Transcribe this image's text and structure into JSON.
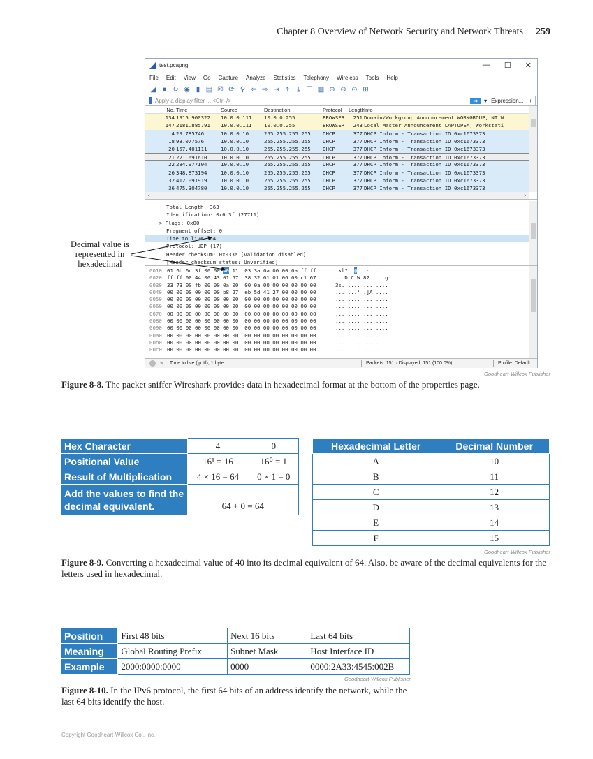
{
  "page": {
    "chapter": "Chapter 8   Overview of Network Security and Network Threats",
    "number": "259",
    "copyright": "Copyright Goodheart-Willcox Co., Inc."
  },
  "wireshark": {
    "title": "test.pcapng",
    "window_buttons": [
      "—",
      "☐",
      "✕"
    ],
    "menu": [
      "File",
      "Edit",
      "View",
      "Go",
      "Capture",
      "Analyze",
      "Statistics",
      "Telephony",
      "Wireless",
      "Tools",
      "Help"
    ],
    "toolbar_icons": [
      "shark-fin-icon",
      "stop-icon",
      "restart-icon",
      "options-icon",
      "open-icon",
      "save-icon",
      "close-file-icon",
      "reload-icon",
      "find-icon",
      "back-icon",
      "forward-icon",
      "go-to-icon",
      "first-icon",
      "last-icon",
      "autoscroll-icon",
      "colorize-icon",
      "zoom-in-icon",
      "zoom-out-icon",
      "zoom-reset-icon",
      "resize-columns-icon"
    ],
    "filter": {
      "placeholder": "Apply a display filter ... <Ctrl-/>",
      "expression": "Expression...",
      "plus": "+"
    },
    "columns": [
      "No.",
      "Time",
      "Source",
      "Destination",
      "Protocol",
      "Length",
      "Info"
    ],
    "packets": [
      {
        "no": "134",
        "time": "1915.900322",
        "src": "10.0.0.111",
        "dst": "10.0.0.255",
        "proto": "BROWSER",
        "len": "251",
        "info": "Domain/Workgroup Announcement WORKGROUP, NT W",
        "color": "yellow"
      },
      {
        "no": "147",
        "time": "2181.885791",
        "src": "10.0.0.111",
        "dst": "10.0.0.255",
        "proto": "BROWSER",
        "len": "243",
        "info": "Local Master Announcement LAPTOPEA, Workstati",
        "color": "yellow"
      },
      {
        "no": "4",
        "time": "29.785746",
        "src": "10.0.0.10",
        "dst": "255.255.255.255",
        "proto": "DHCP",
        "len": "377",
        "info": "DHCP Inform    - Transaction ID 0xc1673373",
        "color": "blue"
      },
      {
        "no": "18",
        "time": "93.077576",
        "src": "10.0.0.10",
        "dst": "255.255.255.255",
        "proto": "DHCP",
        "len": "377",
        "info": "DHCP Inform    - Transaction ID 0xc1673373",
        "color": "blue"
      },
      {
        "no": "20",
        "time": "157.401111",
        "src": "10.0.0.10",
        "dst": "255.255.255.255",
        "proto": "DHCP",
        "len": "377",
        "info": "DHCP Inform    - Transaction ID 0xc1673373",
        "color": "blue"
      },
      {
        "no": "21",
        "time": "221.691610",
        "src": "10.0.0.10",
        "dst": "255.255.255.255",
        "proto": "DHCP",
        "len": "377",
        "info": "DHCP Inform    - Transaction ID 0xc1673373",
        "color": "selected"
      },
      {
        "no": "22",
        "time": "284.977104",
        "src": "10.0.0.10",
        "dst": "255.255.255.255",
        "proto": "DHCP",
        "len": "377",
        "info": "DHCP Inform    - Transaction ID 0xc1673373",
        "color": "blue"
      },
      {
        "no": "26",
        "time": "348.873194",
        "src": "10.0.0.10",
        "dst": "255.255.255.255",
        "proto": "DHCP",
        "len": "377",
        "info": "DHCP Inform    - Transaction ID 0xc1673373",
        "color": "blue"
      },
      {
        "no": "32",
        "time": "412.091919",
        "src": "10.0.0.10",
        "dst": "255.255.255.255",
        "proto": "DHCP",
        "len": "377",
        "info": "DHCP Inform    - Transaction ID 0xc1673373",
        "color": "blue"
      },
      {
        "no": "36",
        "time": "475.304780",
        "src": "10.0.0.10",
        "dst": "255.255.255.255",
        "proto": "DHCP",
        "len": "377",
        "info": "DHCP Inform    - Transaction ID 0xc1673373",
        "color": "blue"
      }
    ],
    "details": [
      {
        "text": "Total Length: 363"
      },
      {
        "text": "Identification: 0x6c3f (27711)"
      },
      {
        "text": "Flags: 0x00",
        "expander": ">"
      },
      {
        "text": "Fragment offset: 0"
      },
      {
        "text": "Time to live: 64",
        "highlight": true
      },
      {
        "text": "Protocol: UDP (17)"
      },
      {
        "text": "Header checksum: 0x033a [validation disabled]"
      },
      {
        "text": "[Header checksum status: Unverified]"
      }
    ],
    "hex": [
      {
        "off": "0010",
        "bytes_a": "01 6b 6c 3f 00 00 ",
        "sel": "40",
        "bytes_b": " 11  03 3a 0a 00 00 0a ff ff",
        "ascii_a": ".kl?..",
        "ascii_sel": "@",
        "ascii_b": ". .:......"
      },
      {
        "off": "0020",
        "bytes": "ff ff 00 44 00 43 01 57  38 32 01 01 06 00 c1 67",
        "ascii": "...D.C.W 82.....g"
      },
      {
        "off": "0030",
        "bytes": "33 73 00 fb 00 00 0a 00  00 0a 00 00 00 00 00 00",
        "ascii": "3s...... ........"
      },
      {
        "off": "0040",
        "bytes": "00 00 00 00 00 00 b8 27  eb 5d 41 27 00 00 00 00",
        "ascii": ".......' .]A'...."
      },
      {
        "off": "0050",
        "bytes": "00 00 00 00 00 00 00 00  00 00 00 00 00 00 00 00",
        "ascii": "........ ........"
      },
      {
        "off": "0060",
        "bytes": "00 00 00 00 00 00 00 00  00 00 00 00 00 00 00 00",
        "ascii": "........ ........"
      },
      {
        "off": "0070",
        "bytes": "00 00 00 00 00 00 00 00  00 00 00 00 00 00 00 00",
        "ascii": "........ ........"
      },
      {
        "off": "0080",
        "bytes": "00 00 00 00 00 00 00 00  00 00 00 00 00 00 00 00",
        "ascii": "........ ........"
      },
      {
        "off": "0090",
        "bytes": "00 00 00 00 00 00 00 00  00 00 00 00 00 00 00 00",
        "ascii": "........ ........"
      },
      {
        "off": "00a0",
        "bytes": "00 00 00 00 00 00 00 00  00 00 00 00 00 00 00 00",
        "ascii": "........ ........"
      },
      {
        "off": "00b0",
        "bytes": "00 00 00 00 00 00 00 00  00 00 00 00 00 00 00 00",
        "ascii": "........ ........"
      },
      {
        "off": "00c0",
        "bytes": "00 00 00 00 00 00 00 00  00 00 00 00 00 00 00 00",
        "ascii": "........ ........"
      }
    ],
    "status": {
      "field": "Time to live (ip.ttl), 1 byte",
      "packets": "Packets: 151 · Displayed: 151 (100.0%)",
      "profile": "Profile: Default"
    },
    "colors": {
      "yellow": "#fdf6d2",
      "blue": "#d9ebf8",
      "selected": "#eeeeee",
      "highlight": "#cde4f6"
    }
  },
  "annotation": "Decimal value is represented in hexadecimal",
  "credit": "Goodheart-Willcox Publisher",
  "fig8": {
    "label": "Figure 8-8.",
    "text": " The packet sniffer Wireshark provides data in hexadecimal format at the bottom of the properties page."
  },
  "hex_table": {
    "rows": [
      [
        "Hex Character",
        "4",
        "0"
      ],
      [
        "Positional Value",
        "16¹ = 16",
        "16⁰ = 1"
      ],
      [
        "Result of Multiplication",
        "4 × 16 = 64",
        "0 × 1 = 0"
      ]
    ],
    "last_label": "Add the values to find the decimal equivalent.",
    "last_value": "64 + 0 = 64"
  },
  "letter_table": {
    "headers": [
      "Hexadecimal Letter",
      "Decimal Number"
    ],
    "rows": [
      [
        "A",
        "10"
      ],
      [
        "B",
        "11"
      ],
      [
        "C",
        "12"
      ],
      [
        "D",
        "13"
      ],
      [
        "E",
        "14"
      ],
      [
        "F",
        "15"
      ]
    ]
  },
  "fig9": {
    "label": "Figure 8-9.",
    "text": " Converting a hexadecimal value of 40 into its decimal equivalent of 64. Also, be aware of the decimal equivalents for the letters used in hexadecimal."
  },
  "ipv6_table": {
    "rows": [
      [
        "Position",
        "First 48 bits",
        "Next 16 bits",
        "Last 64 bits"
      ],
      [
        "Meaning",
        "Global Routing Prefix",
        "Subnet Mask",
        "Host Interface ID"
      ],
      [
        "Example",
        "2000:0000:0000",
        "0000",
        "0000:2A33:4545:002B"
      ]
    ]
  },
  "fig10": {
    "label": "Figure 8-10.",
    "text": " In the IPv6 protocol, the first 64 bits of an address identify the network, while the last 64 bits identify the host."
  },
  "accent": "#2f7fc0"
}
